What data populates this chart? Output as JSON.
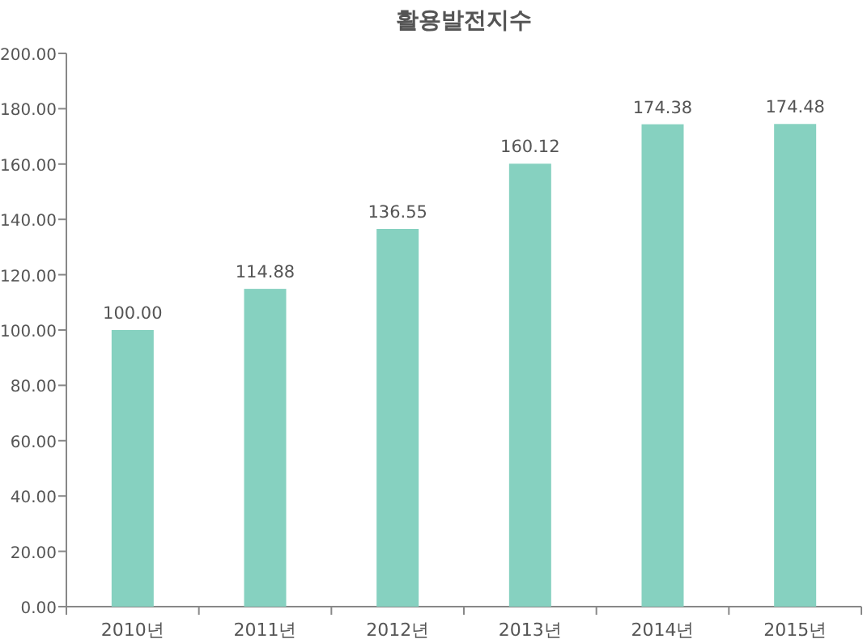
{
  "chart_data": {
    "type": "bar",
    "title": "활용발전지수",
    "categories": [
      "2010년",
      "2011년",
      "2012년",
      "2013년",
      "2014년",
      "2015년"
    ],
    "values": [
      100.0,
      114.88,
      136.55,
      160.12,
      174.38,
      174.48
    ],
    "color": "#86d1c0",
    "ylim": [
      0,
      200
    ],
    "yticks": [
      {
        "value": 0,
        "label": "0.00"
      },
      {
        "value": 20,
        "label": "20.00"
      },
      {
        "value": 40,
        "label": "40.00"
      },
      {
        "value": 60,
        "label": "60.00"
      },
      {
        "value": 80,
        "label": "80.00"
      },
      {
        "value": 100,
        "label": "100.00"
      },
      {
        "value": 120,
        "label": "120.00"
      },
      {
        "value": 140,
        "label": "140.00"
      },
      {
        "value": 160,
        "label": "160.00"
      },
      {
        "value": 180,
        "label": "180.00"
      },
      {
        "value": 200,
        "label": "200.00"
      }
    ],
    "value_labels": [
      "100.00",
      "114.88",
      "136.55",
      "160.12",
      "174.38",
      "174.48"
    ],
    "grid": false
  }
}
